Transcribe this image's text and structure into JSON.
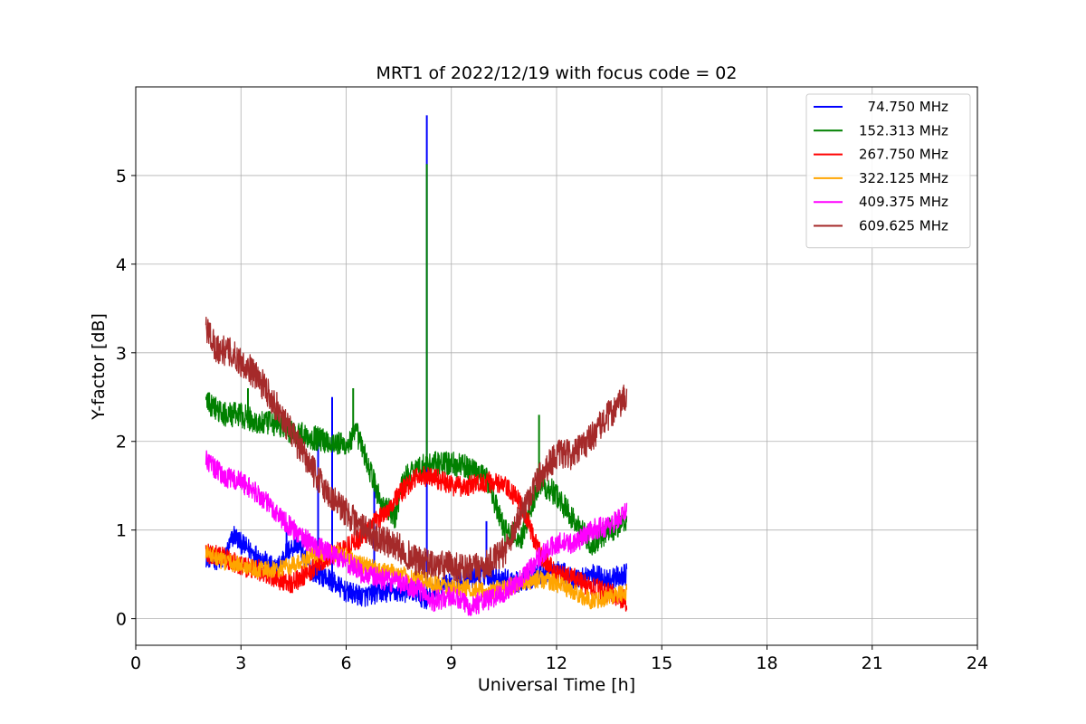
{
  "chart_data": {
    "type": "line",
    "title": "MRT1 of 2022/12/19 with focus code = 02",
    "xlabel": "Universal Time [h]",
    "ylabel": "Y-factor [dB]",
    "xlim": [
      0,
      24
    ],
    "ylim": [
      -0.3,
      6.0
    ],
    "xticks": [
      0,
      3,
      6,
      9,
      12,
      15,
      18,
      21,
      24
    ],
    "yticks": [
      0,
      1,
      2,
      3,
      4,
      5
    ],
    "grid": true,
    "legend_position": "top-right",
    "series": [
      {
        "name": "  74.750 MHz",
        "color": "#0000ff",
        "noise": 0.12,
        "points": [
          [
            2.0,
            0.7
          ],
          [
            2.5,
            0.65
          ],
          [
            2.8,
            0.95
          ],
          [
            3.0,
            0.85
          ],
          [
            3.5,
            0.7
          ],
          [
            4.0,
            0.55
          ],
          [
            4.3,
            0.75
          ],
          [
            4.6,
            0.85
          ],
          [
            5.0,
            0.55
          ],
          [
            5.5,
            0.45
          ],
          [
            6.0,
            0.3
          ],
          [
            6.5,
            0.25
          ],
          [
            7.0,
            0.3
          ],
          [
            7.5,
            0.3
          ],
          [
            8.0,
            0.3
          ],
          [
            8.3,
            0.2
          ],
          [
            8.5,
            0.3
          ],
          [
            9.0,
            0.4
          ],
          [
            9.5,
            0.45
          ],
          [
            10.0,
            0.5
          ],
          [
            10.5,
            0.45
          ],
          [
            11.0,
            0.4
          ],
          [
            11.5,
            0.5
          ],
          [
            12.0,
            0.55
          ],
          [
            12.5,
            0.45
          ],
          [
            13.0,
            0.5
          ],
          [
            13.5,
            0.45
          ],
          [
            14.0,
            0.5
          ]
        ],
        "spikes": [
          [
            8.3,
            5.68
          ],
          [
            5.2,
            2.05
          ],
          [
            5.6,
            2.5
          ],
          [
            6.8,
            1.6
          ],
          [
            4.3,
            1.05
          ],
          [
            10.0,
            1.1
          ]
        ]
      },
      {
        "name": "152.313 MHz",
        "color": "#008000",
        "noise": 0.14,
        "points": [
          [
            2.0,
            2.45
          ],
          [
            2.5,
            2.3
          ],
          [
            3.0,
            2.3
          ],
          [
            3.5,
            2.2
          ],
          [
            4.0,
            2.2
          ],
          [
            4.5,
            2.1
          ],
          [
            5.0,
            2.05
          ],
          [
            5.5,
            2.0
          ],
          [
            6.0,
            1.95
          ],
          [
            6.3,
            2.1
          ],
          [
            6.7,
            1.65
          ],
          [
            7.0,
            1.3
          ],
          [
            7.4,
            1.15
          ],
          [
            7.6,
            1.55
          ],
          [
            8.0,
            1.7
          ],
          [
            8.5,
            1.75
          ],
          [
            9.0,
            1.75
          ],
          [
            9.5,
            1.7
          ],
          [
            10.0,
            1.6
          ],
          [
            10.5,
            1.0
          ],
          [
            11.0,
            0.9
          ],
          [
            11.5,
            1.55
          ],
          [
            12.0,
            1.4
          ],
          [
            12.5,
            1.1
          ],
          [
            13.0,
            0.85
          ],
          [
            13.5,
            1.0
          ],
          [
            14.0,
            1.1
          ]
        ],
        "spikes": [
          [
            8.3,
            5.13
          ],
          [
            6.2,
            2.6
          ],
          [
            11.5,
            2.3
          ],
          [
            3.2,
            2.6
          ]
        ]
      },
      {
        "name": "267.750 MHz",
        "color": "#ff0000",
        "noise": 0.12,
        "points": [
          [
            2.0,
            0.75
          ],
          [
            2.5,
            0.7
          ],
          [
            3.0,
            0.6
          ],
          [
            3.5,
            0.55
          ],
          [
            4.0,
            0.45
          ],
          [
            4.5,
            0.4
          ],
          [
            5.0,
            0.55
          ],
          [
            5.5,
            0.7
          ],
          [
            6.0,
            0.8
          ],
          [
            6.5,
            0.95
          ],
          [
            7.0,
            1.15
          ],
          [
            7.5,
            1.4
          ],
          [
            8.0,
            1.6
          ],
          [
            8.5,
            1.6
          ],
          [
            9.0,
            1.5
          ],
          [
            9.5,
            1.5
          ],
          [
            10.0,
            1.55
          ],
          [
            10.5,
            1.5
          ],
          [
            11.0,
            1.3
          ],
          [
            11.5,
            0.75
          ],
          [
            12.0,
            0.5
          ],
          [
            12.5,
            0.45
          ],
          [
            13.0,
            0.35
          ],
          [
            13.5,
            0.3
          ],
          [
            14.0,
            0.2
          ]
        ],
        "spikes": []
      },
      {
        "name": "322.125 MHz",
        "color": "#ffa500",
        "noise": 0.1,
        "points": [
          [
            2.0,
            0.75
          ],
          [
            2.5,
            0.65
          ],
          [
            3.0,
            0.6
          ],
          [
            3.5,
            0.55
          ],
          [
            4.0,
            0.55
          ],
          [
            4.5,
            0.6
          ],
          [
            5.0,
            0.7
          ],
          [
            5.5,
            0.75
          ],
          [
            6.0,
            0.7
          ],
          [
            6.5,
            0.6
          ],
          [
            7.0,
            0.55
          ],
          [
            7.5,
            0.5
          ],
          [
            8.0,
            0.45
          ],
          [
            8.5,
            0.4
          ],
          [
            9.0,
            0.35
          ],
          [
            9.5,
            0.35
          ],
          [
            10.0,
            0.3
          ],
          [
            10.5,
            0.35
          ],
          [
            11.0,
            0.4
          ],
          [
            11.5,
            0.45
          ],
          [
            12.0,
            0.4
          ],
          [
            12.5,
            0.3
          ],
          [
            13.0,
            0.2
          ],
          [
            13.5,
            0.25
          ],
          [
            14.0,
            0.3
          ]
        ],
        "spikes": []
      },
      {
        "name": "409.375 MHz",
        "color": "#ff00ff",
        "noise": 0.12,
        "points": [
          [
            2.0,
            1.8
          ],
          [
            2.5,
            1.6
          ],
          [
            3.0,
            1.55
          ],
          [
            3.5,
            1.4
          ],
          [
            4.0,
            1.2
          ],
          [
            4.5,
            1.0
          ],
          [
            5.0,
            0.85
          ],
          [
            5.5,
            0.75
          ],
          [
            6.0,
            0.65
          ],
          [
            6.5,
            0.5
          ],
          [
            7.0,
            0.45
          ],
          [
            7.5,
            0.4
          ],
          [
            8.0,
            0.35
          ],
          [
            8.5,
            0.2
          ],
          [
            9.0,
            0.25
          ],
          [
            9.5,
            0.15
          ],
          [
            10.0,
            0.2
          ],
          [
            10.5,
            0.3
          ],
          [
            11.0,
            0.45
          ],
          [
            11.5,
            0.7
          ],
          [
            12.0,
            0.85
          ],
          [
            12.5,
            0.85
          ],
          [
            13.0,
            1.0
          ],
          [
            13.5,
            1.05
          ],
          [
            14.0,
            1.2
          ]
        ],
        "spikes": []
      },
      {
        "name": "609.625 MHz",
        "color": "#a52a2a",
        "noise": 0.17,
        "points": [
          [
            2.0,
            3.3
          ],
          [
            2.3,
            3.05
          ],
          [
            2.7,
            3.0
          ],
          [
            3.0,
            2.9
          ],
          [
            3.3,
            2.8
          ],
          [
            3.7,
            2.6
          ],
          [
            4.0,
            2.4
          ],
          [
            4.5,
            2.05
          ],
          [
            5.0,
            1.7
          ],
          [
            5.5,
            1.4
          ],
          [
            6.0,
            1.2
          ],
          [
            6.5,
            1.0
          ],
          [
            7.0,
            0.9
          ],
          [
            7.5,
            0.8
          ],
          [
            8.0,
            0.65
          ],
          [
            8.5,
            0.6
          ],
          [
            9.0,
            0.6
          ],
          [
            9.5,
            0.55
          ],
          [
            10.0,
            0.6
          ],
          [
            10.5,
            0.75
          ],
          [
            11.0,
            1.2
          ],
          [
            11.5,
            1.6
          ],
          [
            12.0,
            1.85
          ],
          [
            12.5,
            1.85
          ],
          [
            13.0,
            2.05
          ],
          [
            13.5,
            2.3
          ],
          [
            14.0,
            2.5
          ]
        ],
        "spikes": []
      }
    ]
  }
}
